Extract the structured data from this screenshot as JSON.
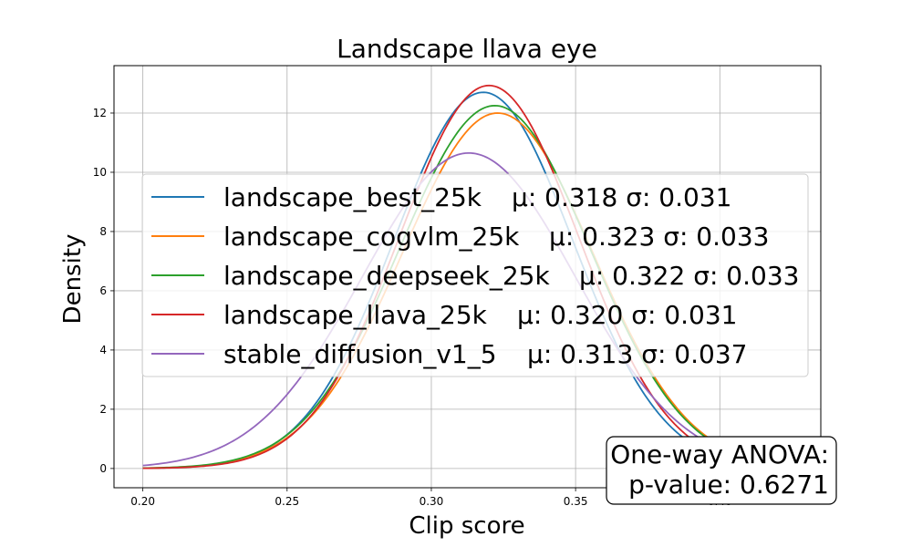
{
  "chart_data": {
    "type": "line",
    "title": "Landscape llava eye",
    "xlabel": "Clip score",
    "ylabel": "Density",
    "xlim": [
      0.19,
      0.435
    ],
    "ylim": [
      -0.65,
      13.6
    ],
    "grid": true,
    "x_ticks": [
      0.2,
      0.25,
      0.3,
      0.35,
      0.4
    ],
    "x_tick_labels": [
      "0.20",
      "0.25",
      "0.30",
      "0.35",
      "0.40"
    ],
    "y_ticks": [
      0,
      2,
      4,
      6,
      8,
      10,
      12
    ],
    "y_tick_labels": [
      "0",
      "2",
      "4",
      "6",
      "8",
      "10",
      "12"
    ],
    "x_range": [
      0.2,
      0.42
    ],
    "legend_position": "center",
    "series": [
      {
        "name": "landscape_best_25k",
        "stats_label": "μ: 0.318 σ: 0.031",
        "mean": 0.318,
        "std": 0.031,
        "peak": 12.7,
        "color": "#1f77b4"
      },
      {
        "name": "landscape_cogvlm_25k",
        "stats_label": "μ: 0.323 σ: 0.033",
        "mean": 0.323,
        "std": 0.033,
        "peak": 12.0,
        "color": "#ff7f0e"
      },
      {
        "name": "landscape_deepseek_25k",
        "stats_label": "μ: 0.322 σ: 0.033",
        "mean": 0.322,
        "std": 0.033,
        "peak": 12.25,
        "color": "#2ca02c"
      },
      {
        "name": "landscape_llava_25k",
        "stats_label": "μ: 0.320 σ: 0.031",
        "mean": 0.32,
        "std": 0.031,
        "peak": 12.93,
        "color": "#d62728"
      },
      {
        "name": "stable_diffusion_v1_5",
        "stats_label": "μ: 0.313 σ: 0.037",
        "mean": 0.313,
        "std": 0.037,
        "peak": 10.65,
        "color": "#9467bd"
      }
    ],
    "annotation": {
      "line1": "One-way ANOVA:",
      "line2": "p-value: 0.6271"
    }
  }
}
